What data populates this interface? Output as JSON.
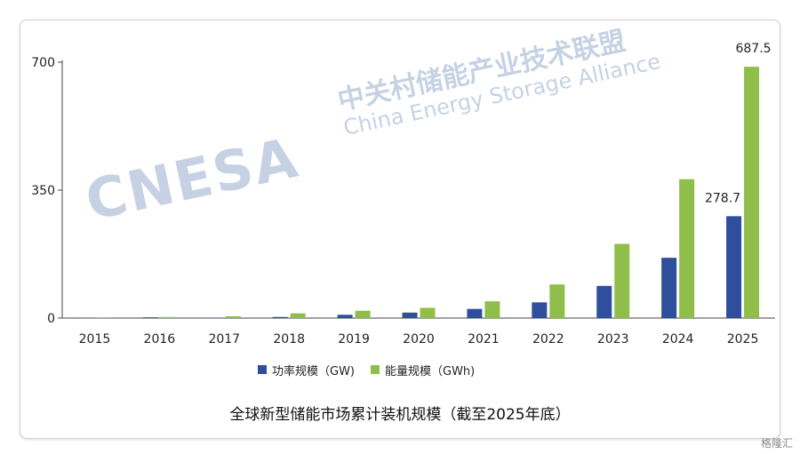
{
  "chart_data": {
    "type": "bar",
    "title": "全球新型储能市场累计装机规模（截至2025年底）",
    "categories": [
      "2015",
      "2016",
      "2017",
      "2018",
      "2019",
      "2020",
      "2021",
      "2022",
      "2023",
      "2024",
      "2025"
    ],
    "series": [
      {
        "name": "功率规模（GW)",
        "color": "#2f4f9c",
        "values": [
          1,
          2,
          1,
          3,
          9,
          15,
          25,
          43,
          88,
          165,
          278.7
        ]
      },
      {
        "name": "能量规模（GWh)",
        "color": "#8fbf4a",
        "values": [
          2,
          3,
          5,
          13,
          20,
          28,
          46,
          92,
          203,
          380,
          687.5
        ]
      }
    ],
    "yticks": [
      0,
      350,
      700
    ],
    "ylim": [
      0,
      700
    ],
    "grid": false,
    "legend_position": "bottom",
    "data_labels": [
      {
        "series": 0,
        "index": 10,
        "text": "278.7"
      },
      {
        "series": 1,
        "index": 10,
        "text": "687.5"
      }
    ]
  },
  "watermark": {
    "logo": "CNESA",
    "name_cn": "中关村储能产业技术联盟",
    "name_en": "China Energy Storage Alliance"
  },
  "corner_mark": "格隆汇"
}
